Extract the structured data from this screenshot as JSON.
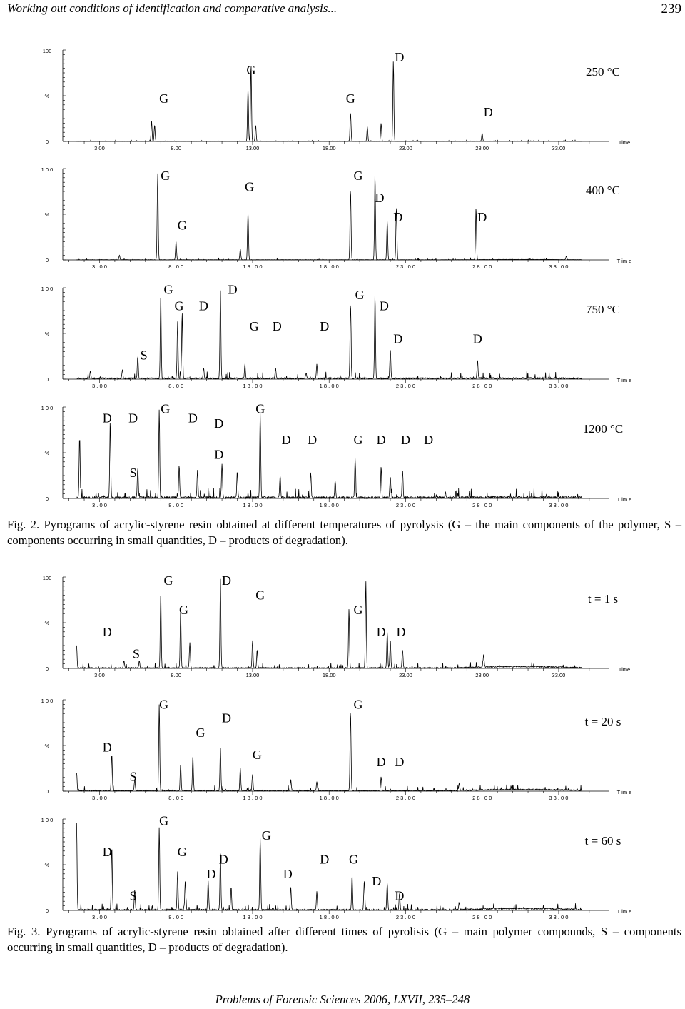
{
  "header": {
    "title": "Working out conditions of identification and comparative analysis...",
    "page_number": "239"
  },
  "figure2": {
    "caption": "Fig. 2. Pyrograms of acrylic-styrene resin obtained at different temperatures of pyrolysis (G – the main components of the polymer, S – components occurring in small quantities, D – products of degradation)."
  },
  "figure3": {
    "caption": "Fig. 3. Pyrograms of acrylic-styrene resin obtained after different times of pyrolisis (G – main polymer compounds, S – components occurring in small quantities, D – products of degradation)."
  },
  "footer": {
    "text": "Problems of Forensic Sciences 2006, LXVII, 235–248"
  },
  "chart_data": [
    {
      "type": "line",
      "figure": "Fig. 2",
      "condition": "250 °C",
      "y_labels": [
        "100",
        "%",
        "0"
      ],
      "x_ticks": [
        "3.00",
        "8.00",
        "13.00",
        "18.00",
        "23.00",
        "28.00",
        "33.00"
      ],
      "x_unit": "Time",
      "xlim": [
        0.6,
        35.8
      ],
      "ylim": [
        0,
        100
      ],
      "peaks": [
        [
          6.4,
          22
        ],
        [
          6.6,
          18
        ],
        [
          12.7,
          58
        ],
        [
          12.9,
          85
        ],
        [
          13.2,
          18
        ],
        [
          19.4,
          32
        ],
        [
          20.5,
          16
        ],
        [
          21.4,
          20
        ],
        [
          22.2,
          88
        ],
        [
          28.0,
          9
        ]
      ],
      "labels": [
        {
          "text": "G",
          "x": 12.9,
          "y": 78
        },
        {
          "text": "D",
          "x": 22.6,
          "y": 92
        },
        {
          "text": "G",
          "x": 7.2,
          "y": 47
        },
        {
          "text": "G",
          "x": 19.4,
          "y": 47
        },
        {
          "text": "D",
          "x": 28.4,
          "y": 32
        }
      ]
    },
    {
      "type": "line",
      "figure": "Fig. 2",
      "condition": "400 °C",
      "y_labels": [
        "1 0 0",
        "%",
        "0"
      ],
      "x_ticks": [
        "3 . 0 0",
        "8 . 0 0",
        "1 3 . 0 0",
        "1 8 . 0 0",
        "2 3 . 0 0",
        "2 8 . 0 0",
        "3 3 . 0 0"
      ],
      "x_unit": "T im e",
      "xlim": [
        0.6,
        35.8
      ],
      "ylim": [
        0,
        100
      ],
      "peaks": [
        [
          4.3,
          5
        ],
        [
          6.8,
          95
        ],
        [
          8.0,
          20
        ],
        [
          12.2,
          12
        ],
        [
          12.7,
          52
        ],
        [
          19.4,
          78
        ],
        [
          21.0,
          94
        ],
        [
          21.8,
          43
        ],
        [
          22.4,
          58
        ],
        [
          27.6,
          57
        ],
        [
          33.5,
          4
        ]
      ],
      "labels": [
        {
          "text": "G",
          "x": 7.3,
          "y": 92
        },
        {
          "text": "G",
          "x": 12.8,
          "y": 80
        },
        {
          "text": "G",
          "x": 19.9,
          "y": 92
        },
        {
          "text": "D",
          "x": 21.3,
          "y": 68
        },
        {
          "text": "D",
          "x": 22.5,
          "y": 47
        },
        {
          "text": "G",
          "x": 8.4,
          "y": 38
        },
        {
          "text": "D",
          "x": 28.0,
          "y": 47
        }
      ]
    },
    {
      "type": "line",
      "figure": "Fig. 2",
      "condition": "750 °C",
      "y_labels": [
        "1 0 0",
        "%",
        "0"
      ],
      "x_ticks": [
        "3 . 0 0",
        "8 . 0 0",
        "1 3 . 0 0",
        "1 8 . 0 0",
        "2 3 . 0 0",
        "2 8 . 0 0",
        "3 3 . 0 0"
      ],
      "x_unit": "T im e",
      "xlim": [
        0.6,
        35.8
      ],
      "ylim": [
        0,
        100
      ],
      "peaks": [
        [
          1.4,
          40
        ],
        [
          2.4,
          8
        ],
        [
          4.5,
          10
        ],
        [
          5.5,
          24
        ],
        [
          7.0,
          90
        ],
        [
          8.1,
          62
        ],
        [
          8.4,
          72
        ],
        [
          9.8,
          12
        ],
        [
          10.9,
          98
        ],
        [
          12.5,
          16
        ],
        [
          14.5,
          12
        ],
        [
          16.5,
          6
        ],
        [
          17.2,
          16
        ],
        [
          19.4,
          84
        ],
        [
          21.0,
          92
        ],
        [
          22.0,
          32
        ],
        [
          27.7,
          20
        ]
      ],
      "labels": [
        {
          "text": "G",
          "x": 7.5,
          "y": 98
        },
        {
          "text": "G",
          "x": 8.2,
          "y": 80
        },
        {
          "text": "D",
          "x": 9.8,
          "y": 80
        },
        {
          "text": "D",
          "x": 11.7,
          "y": 98
        },
        {
          "text": "G",
          "x": 20.0,
          "y": 92
        },
        {
          "text": "D",
          "x": 21.6,
          "y": 80
        },
        {
          "text": "G",
          "x": 13.1,
          "y": 58
        },
        {
          "text": "D",
          "x": 14.6,
          "y": 58
        },
        {
          "text": "D",
          "x": 17.7,
          "y": 58
        },
        {
          "text": "D",
          "x": 22.5,
          "y": 44
        },
        {
          "text": "D",
          "x": 27.7,
          "y": 44
        },
        {
          "text": "S",
          "x": 5.9,
          "y": 26
        }
      ]
    },
    {
      "type": "line",
      "figure": "Fig. 2",
      "condition": "1200 °C",
      "y_labels": [
        "1 0 0",
        "%",
        "0"
      ],
      "x_ticks": [
        "3 . 0 0",
        "8 . 0 0",
        "1 3 . 0 0",
        "1 8 . 0 0",
        "2 3 . 0 0",
        "2 8 . 0 0",
        "3 3 . 0 0"
      ],
      "x_unit": "T im e",
      "xlim": [
        0.6,
        35.8
      ],
      "ylim": [
        0,
        100
      ],
      "peaks": [
        [
          1.7,
          66
        ],
        [
          3.7,
          84
        ],
        [
          5.5,
          32
        ],
        [
          6.9,
          96
        ],
        [
          8.2,
          36
        ],
        [
          9.4,
          30
        ],
        [
          11.0,
          37
        ],
        [
          12.0,
          28
        ],
        [
          13.5,
          95
        ],
        [
          14.8,
          24
        ],
        [
          16.8,
          28
        ],
        [
          18.4,
          18
        ],
        [
          19.7,
          44
        ],
        [
          21.4,
          34
        ],
        [
          22.0,
          23
        ],
        [
          22.8,
          30
        ],
        [
          25.6,
          6
        ]
      ],
      "labels": [
        {
          "text": "D",
          "x": 3.5,
          "y": 88
        },
        {
          "text": "D",
          "x": 5.2,
          "y": 88
        },
        {
          "text": "G",
          "x": 7.3,
          "y": 98
        },
        {
          "text": "D",
          "x": 9.1,
          "y": 88
        },
        {
          "text": "D",
          "x": 10.8,
          "y": 82
        },
        {
          "text": "G",
          "x": 13.5,
          "y": 98
        },
        {
          "text": "D",
          "x": 10.8,
          "y": 48
        },
        {
          "text": "D",
          "x": 15.2,
          "y": 64
        },
        {
          "text": "D",
          "x": 16.9,
          "y": 64
        },
        {
          "text": "G",
          "x": 19.9,
          "y": 64
        },
        {
          "text": "D",
          "x": 21.4,
          "y": 64
        },
        {
          "text": "D",
          "x": 23.0,
          "y": 64
        },
        {
          "text": "D",
          "x": 24.5,
          "y": 64
        },
        {
          "text": "S",
          "x": 5.2,
          "y": 28
        }
      ]
    },
    {
      "type": "line",
      "figure": "Fig. 3",
      "condition": "t = 1 s",
      "y_labels": [
        "100",
        "%",
        "0"
      ],
      "x_ticks": [
        "3.00",
        "8.00",
        "13.00",
        "18.00",
        "23.00",
        "28.00",
        "33.00"
      ],
      "x_unit": "Time",
      "xlim": [
        0.6,
        35.8
      ],
      "ylim": [
        0,
        100
      ],
      "peaks": [
        [
          1.5,
          24
        ],
        [
          4.6,
          8
        ],
        [
          5.6,
          8
        ],
        [
          7.0,
          82
        ],
        [
          8.3,
          63
        ],
        [
          8.9,
          28
        ],
        [
          10.9,
          98
        ],
        [
          13.0,
          30
        ],
        [
          13.3,
          20
        ],
        [
          19.3,
          65
        ],
        [
          20.4,
          95
        ],
        [
          21.8,
          40
        ],
        [
          22.0,
          30
        ],
        [
          22.8,
          20
        ],
        [
          28.1,
          14
        ]
      ],
      "labels": [
        {
          "text": "G",
          "x": 7.5,
          "y": 96
        },
        {
          "text": "D",
          "x": 11.3,
          "y": 96
        },
        {
          "text": "G",
          "x": 13.5,
          "y": 80
        },
        {
          "text": "G",
          "x": 8.5,
          "y": 64
        },
        {
          "text": "G",
          "x": 19.9,
          "y": 64
        },
        {
          "text": "D",
          "x": 3.5,
          "y": 40
        },
        {
          "text": "D",
          "x": 21.4,
          "y": 40
        },
        {
          "text": "D",
          "x": 22.7,
          "y": 40
        },
        {
          "text": "S",
          "x": 5.4,
          "y": 16
        }
      ]
    },
    {
      "type": "line",
      "figure": "Fig. 3",
      "condition": "t = 20 s",
      "y_labels": [
        "1 0 0",
        "%",
        "0"
      ],
      "x_ticks": [
        "3 . 0 0",
        "8 . 0 0",
        "1 3 . 0 0",
        "1 8 . 0 0",
        "2 3 . 0 0",
        "2 8 . 0 0",
        "3 3 . 0 0"
      ],
      "x_unit": "T im e",
      "xlim": [
        0.6,
        35.8
      ],
      "ylim": [
        0,
        100
      ],
      "peaks": [
        [
          1.5,
          20
        ],
        [
          3.8,
          40
        ],
        [
          5.3,
          12
        ],
        [
          6.9,
          95
        ],
        [
          8.3,
          30
        ],
        [
          9.1,
          38
        ],
        [
          10.9,
          48
        ],
        [
          12.2,
          25
        ],
        [
          13.0,
          18
        ],
        [
          15.5,
          12
        ],
        [
          17.2,
          10
        ],
        [
          19.4,
          88
        ],
        [
          21.4,
          15
        ],
        [
          26.5,
          8
        ]
      ],
      "labels": [
        {
          "text": "G",
          "x": 7.2,
          "y": 95
        },
        {
          "text": "G",
          "x": 19.9,
          "y": 95
        },
        {
          "text": "D",
          "x": 11.3,
          "y": 80
        },
        {
          "text": "G",
          "x": 9.6,
          "y": 64
        },
        {
          "text": "G",
          "x": 13.3,
          "y": 40
        },
        {
          "text": "D",
          "x": 3.5,
          "y": 48
        },
        {
          "text": "D",
          "x": 21.4,
          "y": 32
        },
        {
          "text": "D",
          "x": 22.6,
          "y": 32
        },
        {
          "text": "S",
          "x": 5.2,
          "y": 16
        }
      ]
    },
    {
      "type": "line",
      "figure": "Fig. 3",
      "condition": "t = 60 s",
      "y_labels": [
        "1 0 0",
        "%",
        "0"
      ],
      "x_ticks": [
        "3 . 0 0",
        "8 . 0 0",
        "1 3 . 0 0",
        "1 8 . 0 0",
        "2 3 . 0 0",
        "2 8 . 0 0",
        "3 3 . 0 0"
      ],
      "x_unit": "T im e",
      "xlim": [
        0.6,
        35.8
      ],
      "ylim": [
        0,
        100
      ],
      "peaks": [
        [
          1.5,
          95
        ],
        [
          3.8,
          70
        ],
        [
          5.3,
          22
        ],
        [
          6.9,
          90
        ],
        [
          8.1,
          42
        ],
        [
          8.6,
          32
        ],
        [
          10.1,
          32
        ],
        [
          10.9,
          62
        ],
        [
          11.6,
          25
        ],
        [
          13.5,
          80
        ],
        [
          15.5,
          24
        ],
        [
          17.2,
          20
        ],
        [
          19.5,
          38
        ],
        [
          20.3,
          32
        ],
        [
          21.8,
          30
        ],
        [
          22.6,
          18
        ],
        [
          26.5,
          8
        ]
      ],
      "labels": [
        {
          "text": "G",
          "x": 7.2,
          "y": 98
        },
        {
          "text": "G",
          "x": 13.9,
          "y": 82
        },
        {
          "text": "D",
          "x": 3.5,
          "y": 64
        },
        {
          "text": "G",
          "x": 8.4,
          "y": 64
        },
        {
          "text": "D",
          "x": 11.1,
          "y": 56
        },
        {
          "text": "D",
          "x": 17.7,
          "y": 56
        },
        {
          "text": "G",
          "x": 19.6,
          "y": 56
        },
        {
          "text": "D",
          "x": 10.3,
          "y": 40
        },
        {
          "text": "D",
          "x": 15.3,
          "y": 40
        },
        {
          "text": "D",
          "x": 21.1,
          "y": 32
        },
        {
          "text": "D",
          "x": 22.6,
          "y": 16
        },
        {
          "text": "S",
          "x": 5.2,
          "y": 16
        }
      ]
    }
  ]
}
